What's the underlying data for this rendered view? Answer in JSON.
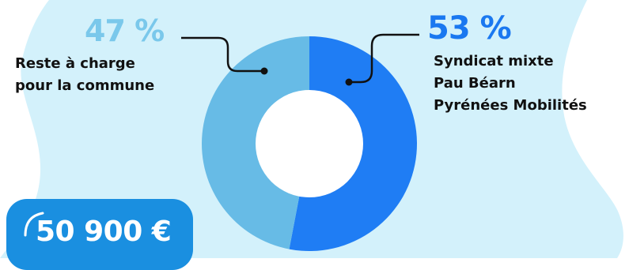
{
  "colors": {
    "background_blob": "#d3f1fb",
    "slice_commune": "#67bbe6",
    "slice_syndicat": "#1f7df4",
    "label_light": "#7ac8eb",
    "label_dark": "#1a78f0",
    "badge": "#1a8fe0",
    "leader_line": "#111111"
  },
  "chart_data": {
    "type": "pie",
    "style": "donut",
    "slices": [
      {
        "percent_label": "47 %",
        "value": 47,
        "label_lines": [
          "Reste à charge",
          "pour la commune"
        ],
        "color": "#67bbe6"
      },
      {
        "percent_label": "53 %",
        "value": 53,
        "label_lines": [
          "Syndicat mixte",
          "Pau Béarn",
          "Pyrénées Mobilités"
        ],
        "color": "#1f7df4"
      }
    ]
  },
  "badge": {
    "amount": "50 900 €",
    "icon": "corner-accent-icon"
  }
}
